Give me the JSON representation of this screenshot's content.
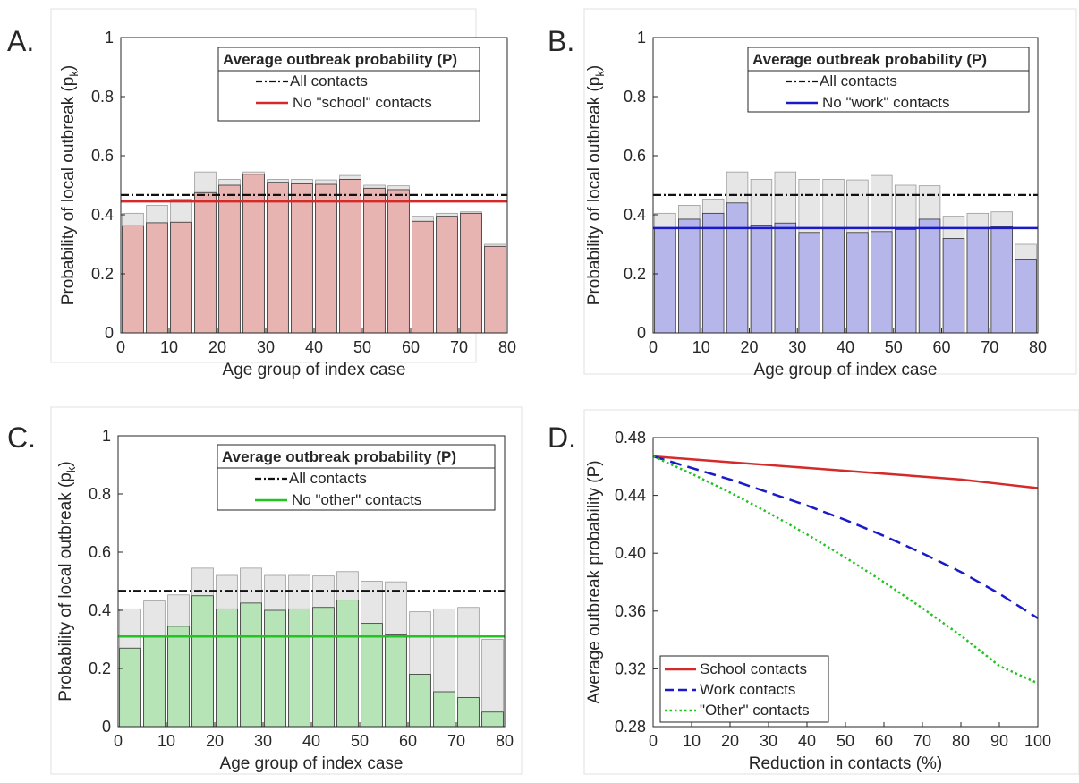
{
  "panels": [
    {
      "letter": "A.",
      "type": "bar",
      "ylabel_main": "Probability of local outbreak (p",
      "ylabel_sub": "k",
      "ylabel_close": ")",
      "xlabel": "Age group of index case",
      "xlim": [
        0,
        80
      ],
      "ylim": [
        0,
        1
      ],
      "xticks": [
        "0",
        "10",
        "20",
        "30",
        "40",
        "50",
        "60",
        "70",
        "80"
      ],
      "yticks": [
        "0",
        "0.2",
        "0.4",
        "0.6",
        "0.8",
        "1"
      ],
      "legend_title": "Average outbreak probability (P)",
      "legend_items": [
        "All contacts",
        "No \"school\" contacts"
      ],
      "bar_centers": [
        2.5,
        7.5,
        12.5,
        17.5,
        22.5,
        27.5,
        32.5,
        37.5,
        42.5,
        47.5,
        52.5,
        57.5,
        62.5,
        67.5,
        72.5,
        77.5
      ],
      "all_contacts": [
        0.405,
        0.432,
        0.453,
        0.545,
        0.52,
        0.545,
        0.52,
        0.52,
        0.518,
        0.533,
        0.5,
        0.498,
        0.395,
        0.405,
        0.41,
        0.3
      ],
      "reduced": [
        0.363,
        0.373,
        0.375,
        0.475,
        0.5,
        0.537,
        0.51,
        0.505,
        0.503,
        0.52,
        0.49,
        0.485,
        0.378,
        0.395,
        0.405,
        0.293
      ],
      "avg_all": 0.467,
      "avg_reduced": 0.445,
      "fill": "#E8B4B2",
      "line_color": "#D42A2A"
    },
    {
      "letter": "B.",
      "type": "bar",
      "ylabel_main": "Probability of local outbreak (p",
      "ylabel_sub": "k",
      "ylabel_close": ")",
      "xlabel": "Age group of index case",
      "xlim": [
        0,
        80
      ],
      "ylim": [
        0,
        1
      ],
      "xticks": [
        "0",
        "10",
        "20",
        "30",
        "40",
        "50",
        "60",
        "70",
        "80"
      ],
      "yticks": [
        "0",
        "0.2",
        "0.4",
        "0.6",
        "0.8",
        "1"
      ],
      "legend_title": "Average outbreak probability (P)",
      "legend_items": [
        "All contacts",
        "No \"work\" contacts"
      ],
      "bar_centers": [
        2.5,
        7.5,
        12.5,
        17.5,
        22.5,
        27.5,
        32.5,
        37.5,
        42.5,
        47.5,
        52.5,
        57.5,
        62.5,
        67.5,
        72.5,
        77.5
      ],
      "all_contacts": [
        0.405,
        0.432,
        0.453,
        0.545,
        0.52,
        0.545,
        0.52,
        0.52,
        0.518,
        0.533,
        0.5,
        0.498,
        0.395,
        0.405,
        0.41,
        0.3
      ],
      "reduced": [
        0.355,
        0.385,
        0.405,
        0.44,
        0.365,
        0.372,
        0.34,
        0.355,
        0.34,
        0.343,
        0.35,
        0.385,
        0.32,
        0.355,
        0.36,
        0.25
      ],
      "avg_all": 0.467,
      "avg_reduced": 0.355,
      "fill": "#B6B6EA",
      "line_color": "#1A1AC8"
    },
    {
      "letter": "C.",
      "type": "bar",
      "ylabel_main": "Probability of local outbreak (p",
      "ylabel_sub": "k",
      "ylabel_close": ")",
      "xlabel": "Age group of index case",
      "xlim": [
        0,
        80
      ],
      "ylim": [
        0,
        1
      ],
      "xticks": [
        "0",
        "10",
        "20",
        "30",
        "40",
        "50",
        "60",
        "70",
        "80"
      ],
      "yticks": [
        "0",
        "0.2",
        "0.4",
        "0.6",
        "0.8",
        "1"
      ],
      "legend_title": "Average outbreak probability (P)",
      "legend_items": [
        "All contacts",
        "No \"other\" contacts"
      ],
      "bar_centers": [
        2.5,
        7.5,
        12.5,
        17.5,
        22.5,
        27.5,
        32.5,
        37.5,
        42.5,
        47.5,
        52.5,
        57.5,
        62.5,
        67.5,
        72.5,
        77.5
      ],
      "all_contacts": [
        0.405,
        0.432,
        0.453,
        0.545,
        0.52,
        0.545,
        0.52,
        0.52,
        0.518,
        0.533,
        0.5,
        0.498,
        0.395,
        0.405,
        0.41,
        0.3
      ],
      "reduced": [
        0.27,
        0.31,
        0.345,
        0.45,
        0.405,
        0.425,
        0.4,
        0.405,
        0.41,
        0.435,
        0.355,
        0.315,
        0.18,
        0.12,
        0.1,
        0.05
      ],
      "avg_all": 0.467,
      "avg_reduced": 0.31,
      "fill": "#B7E4B6",
      "line_color": "#21C421"
    },
    {
      "letter": "D.",
      "type": "line",
      "ylabel_main": "Average outbreak probability (P)",
      "xlabel": "Reduction in contacts (%)",
      "xlim": [
        0,
        100
      ],
      "ylim": [
        0.28,
        0.48
      ],
      "xticks": [
        "0",
        "10",
        "20",
        "30",
        "40",
        "50",
        "60",
        "70",
        "80",
        "90",
        "100"
      ],
      "yticks": [
        "0.28",
        "0.32",
        "0.36",
        "0.40",
        "0.44",
        "0.48"
      ],
      "x": [
        0,
        10,
        20,
        30,
        40,
        50,
        60,
        70,
        80,
        90,
        100
      ],
      "series": [
        {
          "name": "School contacts",
          "color": "#D42A2A",
          "dash": "solid",
          "values": [
            0.467,
            0.465,
            0.463,
            0.461,
            0.459,
            0.457,
            0.455,
            0.453,
            0.451,
            0.448,
            0.445
          ]
        },
        {
          "name": "Work contacts",
          "color": "#1A1AC8",
          "dash": "dashed",
          "values": [
            0.467,
            0.459,
            0.451,
            0.442,
            0.433,
            0.423,
            0.412,
            0.4,
            0.387,
            0.372,
            0.355
          ]
        },
        {
          "name": "\"Other\" contacts",
          "color": "#21C421",
          "dash": "dotted",
          "values": [
            0.467,
            0.455,
            0.442,
            0.428,
            0.413,
            0.397,
            0.38,
            0.362,
            0.343,
            0.322,
            0.31
          ]
        }
      ],
      "legend_position": "bottom-left"
    }
  ]
}
